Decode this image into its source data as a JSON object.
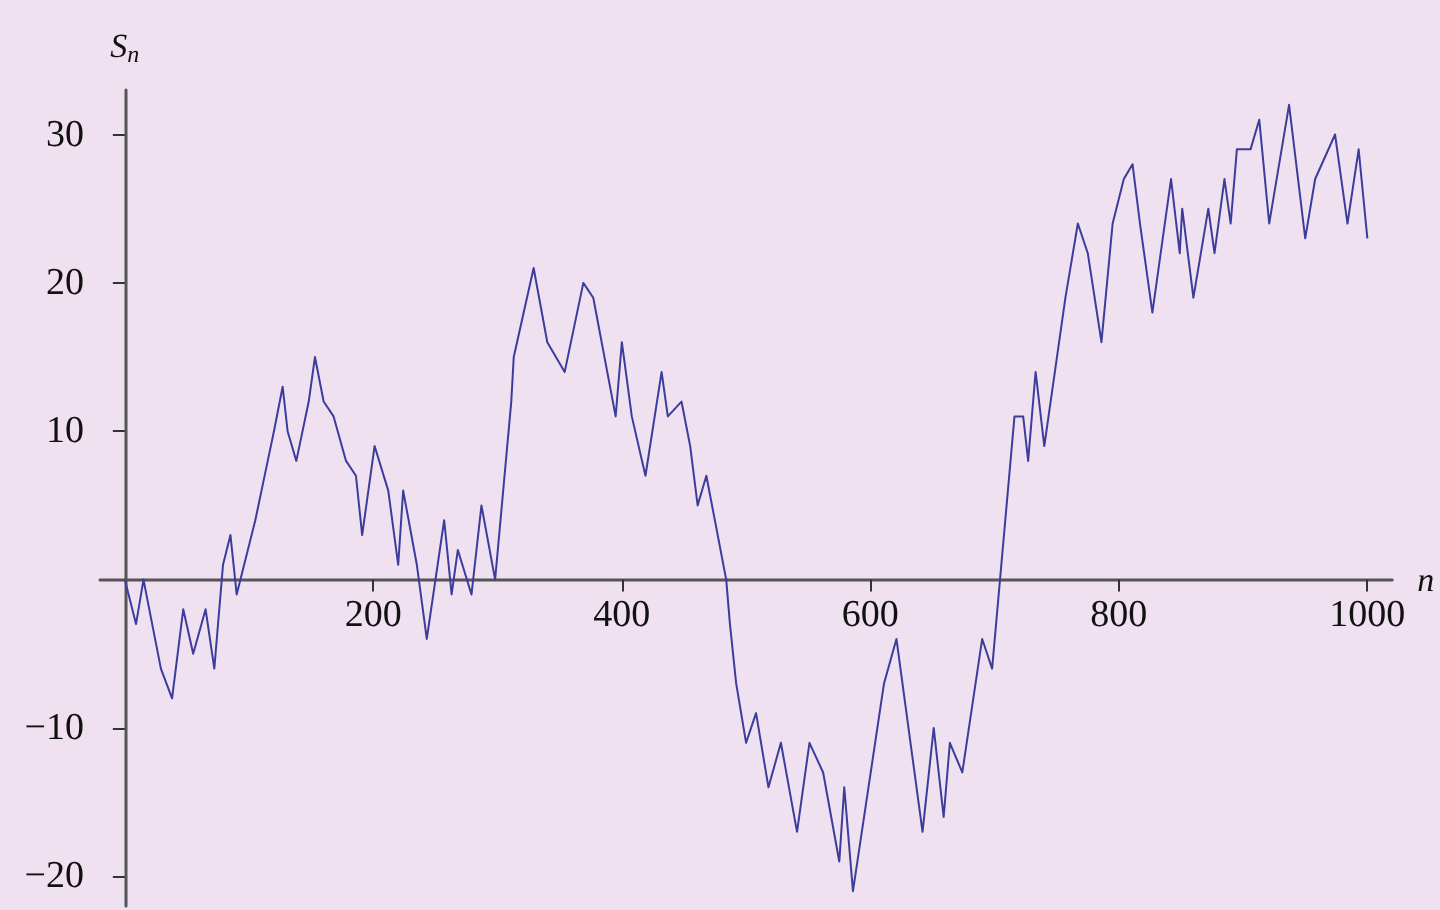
{
  "chart_data": {
    "type": "line",
    "ylabel": "S$_{n}$",
    "xlabel": "n",
    "x": [
      0,
      3,
      9,
      15,
      29,
      38,
      47,
      55,
      65,
      72,
      79,
      85,
      90,
      105,
      115,
      120,
      127,
      131,
      138,
      148,
      153,
      160,
      168,
      178,
      186,
      191,
      201,
      212,
      220,
      224,
      235,
      243,
      257,
      263,
      268,
      279,
      287,
      298,
      311,
      313,
      329,
      340,
      354,
      369,
      377,
      395,
      400,
      408,
      419,
      432,
      437,
      448,
      455,
      461,
      468,
      484,
      487,
      492,
      500,
      508,
      518,
      528,
      541,
      551,
      562,
      575,
      579,
      586,
      611,
      621,
      642,
      651,
      659,
      664,
      674,
      690,
      698,
      716,
      723,
      727,
      733,
      740,
      757,
      767,
      775,
      786,
      795,
      804,
      811,
      817,
      827,
      842,
      849,
      851,
      860,
      872,
      877,
      885,
      890,
      895,
      906,
      913,
      921,
      937,
      950,
      958,
      974,
      984,
      993,
      1000
    ],
    "series": [
      {
        "color": "#3c3c9c",
        "values": [
          0,
          -1,
          -3,
          0,
          -6,
          -8,
          -2,
          -5,
          -2,
          -6,
          1,
          3,
          -1,
          4,
          8,
          10,
          13,
          10,
          8,
          12,
          15,
          12,
          11,
          8,
          7,
          3,
          9,
          6,
          1,
          6,
          1,
          -4,
          4,
          -1,
          2,
          -1,
          5,
          0,
          12,
          15,
          21,
          16,
          14,
          20,
          19,
          11,
          16,
          11,
          7,
          14,
          11,
          12,
          9,
          5,
          7,
          0,
          -3,
          -7,
          -11,
          -9,
          -14,
          -11,
          -17,
          -11,
          -13,
          -19,
          -14,
          -21,
          -7,
          -4,
          -17,
          -10,
          -16,
          -11,
          -13,
          -4,
          -6,
          11,
          11,
          8,
          14,
          9,
          19,
          24,
          22,
          16,
          24,
          27,
          28,
          24,
          18,
          27,
          22,
          25,
          19,
          25,
          22,
          27,
          24,
          29,
          29,
          31,
          24,
          32,
          23,
          27,
          30,
          24,
          29,
          23
        ]
      }
    ],
    "xlim": [
      -20,
      1020
    ],
    "ylim": [
      -22,
      33
    ],
    "xticks": [
      200,
      400,
      600,
      800,
      1000
    ],
    "yticks": [
      -20,
      -10,
      10,
      20,
      30
    ],
    "grid": false,
    "marker": "none",
    "line_style": "solid"
  }
}
